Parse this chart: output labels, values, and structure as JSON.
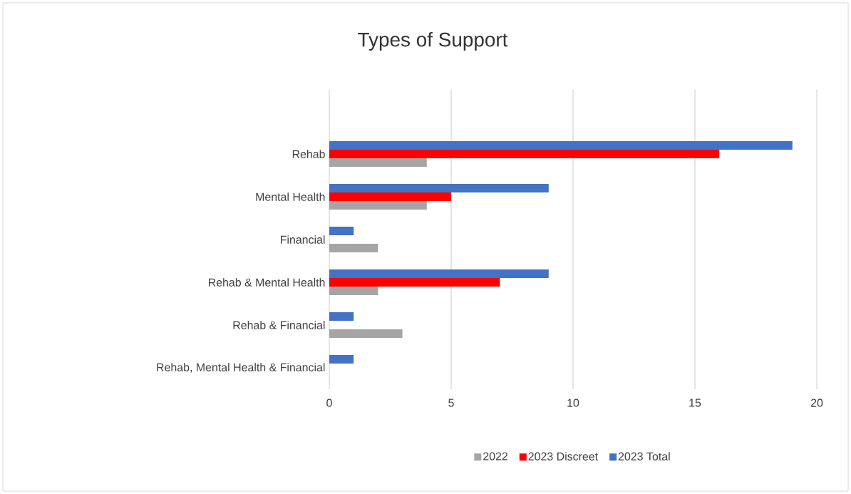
{
  "chart_data": {
    "type": "bar",
    "orientation": "horizontal",
    "title": "Types of Support",
    "categories": [
      "Rehab",
      "Mental Health",
      "Financial",
      "Rehab & Mental Health",
      "Rehab & Financial",
      "Rehab, Mental Health & Financial"
    ],
    "series": [
      {
        "name": "2022",
        "color": "#a5a5a5",
        "values": [
          4,
          4,
          2,
          2,
          3,
          null
        ]
      },
      {
        "name": "2023 Discreet",
        "color": "#ff0000",
        "values": [
          16,
          5,
          null,
          7,
          null,
          null
        ]
      },
      {
        "name": "2023 Total",
        "color": "#4472c4",
        "values": [
          19,
          9,
          1,
          9,
          1,
          1
        ]
      }
    ],
    "xlim": [
      0,
      20
    ],
    "xticks": [
      0,
      5,
      10,
      15,
      20
    ],
    "grid": "x",
    "legend": "bottom"
  }
}
